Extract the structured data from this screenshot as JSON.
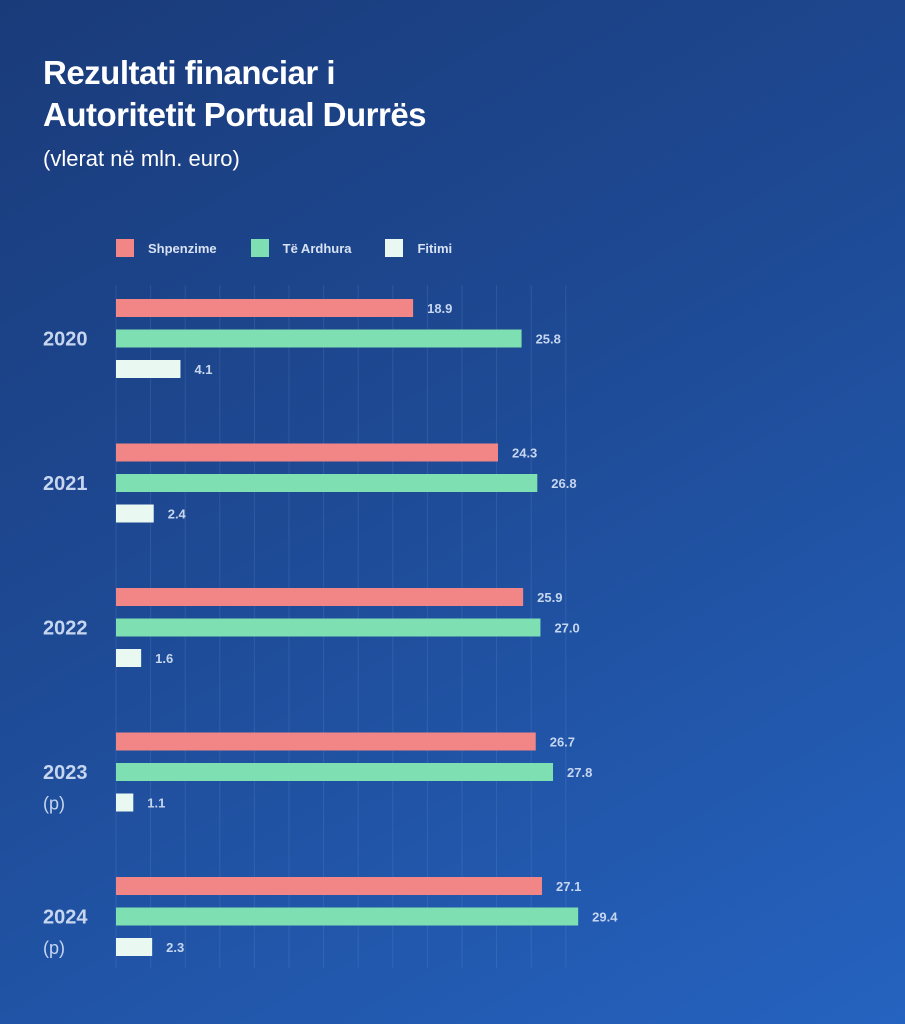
{
  "header": {
    "title_line1": "Rezultati financiar i",
    "title_line2": "Autoritetit Portual Durrës",
    "subtitle": "(vlerat në mln. euro)"
  },
  "colors": {
    "expenses": "#f28585",
    "revenue": "#7ee0b2",
    "profit": "#e9f8f1"
  },
  "chart_data": {
    "type": "bar",
    "orientation": "horizontal",
    "title": "Rezultati financiar i Autoritetit Portual Durrës",
    "subtitle": "(vlerat në mln. euro)",
    "categories": [
      "2020",
      "2021",
      "2022",
      "2023",
      "2024"
    ],
    "category_notes": [
      "",
      "",
      "",
      "(p)",
      "(p)"
    ],
    "series": [
      {
        "name": "Shpenzime",
        "values": [
          18.9,
          24.3,
          25.9,
          26.7,
          27.1
        ]
      },
      {
        "name": "Të Ardhura",
        "values": [
          25.8,
          26.8,
          27.0,
          27.8,
          29.4
        ]
      },
      {
        "name": "Fitimi",
        "values": [
          4.1,
          2.4,
          1.6,
          1.1,
          2.3
        ]
      }
    ],
    "value_labels": [
      [
        "18.9",
        "24.3",
        "25.9",
        "26.7",
        "27.1"
      ],
      [
        "25.8",
        "26.8",
        "27.0",
        "27.8",
        "29.4"
      ],
      [
        "4.1",
        "2.4",
        "1.6",
        "1.1",
        "2.3"
      ]
    ],
    "xlim": [
      0,
      32
    ],
    "grid": true,
    "legend_position": "top-left"
  }
}
